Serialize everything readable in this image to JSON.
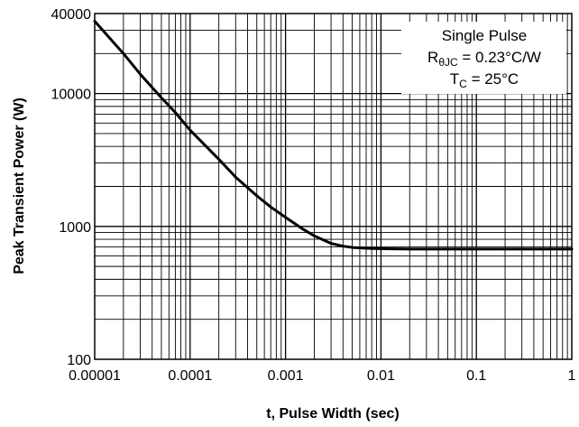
{
  "chart_data": {
    "type": "line",
    "title": "",
    "xlabel": "t, Pulse Width (sec)",
    "ylabel": "Peak Transient Power (W)",
    "x_scale": "log",
    "y_scale": "log",
    "xlim": [
      1e-05,
      1
    ],
    "ylim": [
      100,
      40000
    ],
    "x_ticks": [
      {
        "value": 1e-05,
        "label": "0.00001"
      },
      {
        "value": 0.0001,
        "label": "0.0001"
      },
      {
        "value": 0.001,
        "label": "0.001"
      },
      {
        "value": 0.01,
        "label": "0.01"
      },
      {
        "value": 0.1,
        "label": "0.1"
      },
      {
        "value": 1,
        "label": "1"
      }
    ],
    "y_ticks": [
      {
        "value": 100,
        "label": "100"
      },
      {
        "value": 1000,
        "label": "1000"
      },
      {
        "value": 10000,
        "label": "10000"
      },
      {
        "value": 40000,
        "label": "40000"
      }
    ],
    "grid": true,
    "annotation": {
      "line1": "Single Pulse",
      "line2_main": "R",
      "line2_sub": "θJC",
      "line2_rest": " = 0.23°C/W",
      "line3_main": "T",
      "line3_sub": "C",
      "line3_rest": " = 25°C"
    },
    "series": [
      {
        "x": [
          1e-05,
          2e-05,
          3e-05,
          5e-05,
          7e-05,
          0.0001,
          0.0002,
          0.0003,
          0.0005,
          0.0007,
          0.001,
          0.0015,
          0.002,
          0.003,
          0.004,
          0.005,
          0.007,
          0.01,
          0.02,
          0.05,
          0.1,
          0.2,
          0.5,
          1
        ],
        "values": [
          35000,
          20000,
          14000,
          9300,
          7200,
          5300,
          3200,
          2350,
          1700,
          1400,
          1170,
          960,
          850,
          745,
          710,
          695,
          685,
          680,
          675,
          675,
          675,
          675,
          675,
          675
        ]
      }
    ]
  }
}
